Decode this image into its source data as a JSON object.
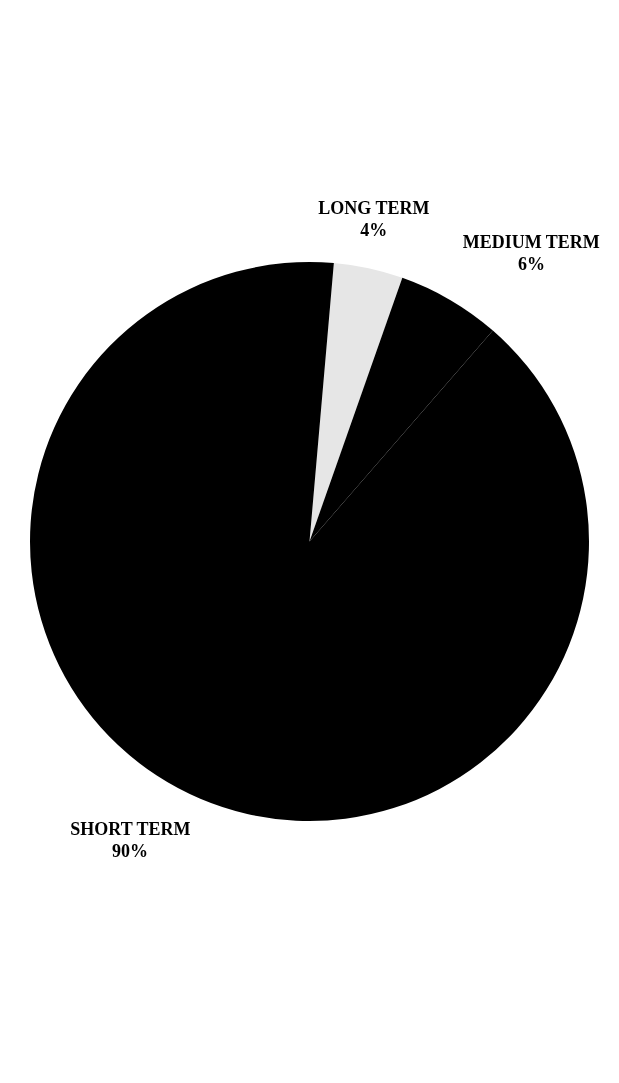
{
  "chart_data": {
    "type": "pie",
    "categories": [
      "LONG TERM",
      "MEDIUM TERM",
      "SHORT TERM"
    ],
    "values": [
      4,
      6,
      90
    ],
    "colors": [
      "#e6e6e6",
      "#000000",
      "#000000"
    ],
    "value_labels": [
      "4%",
      "6%",
      "90%"
    ]
  }
}
